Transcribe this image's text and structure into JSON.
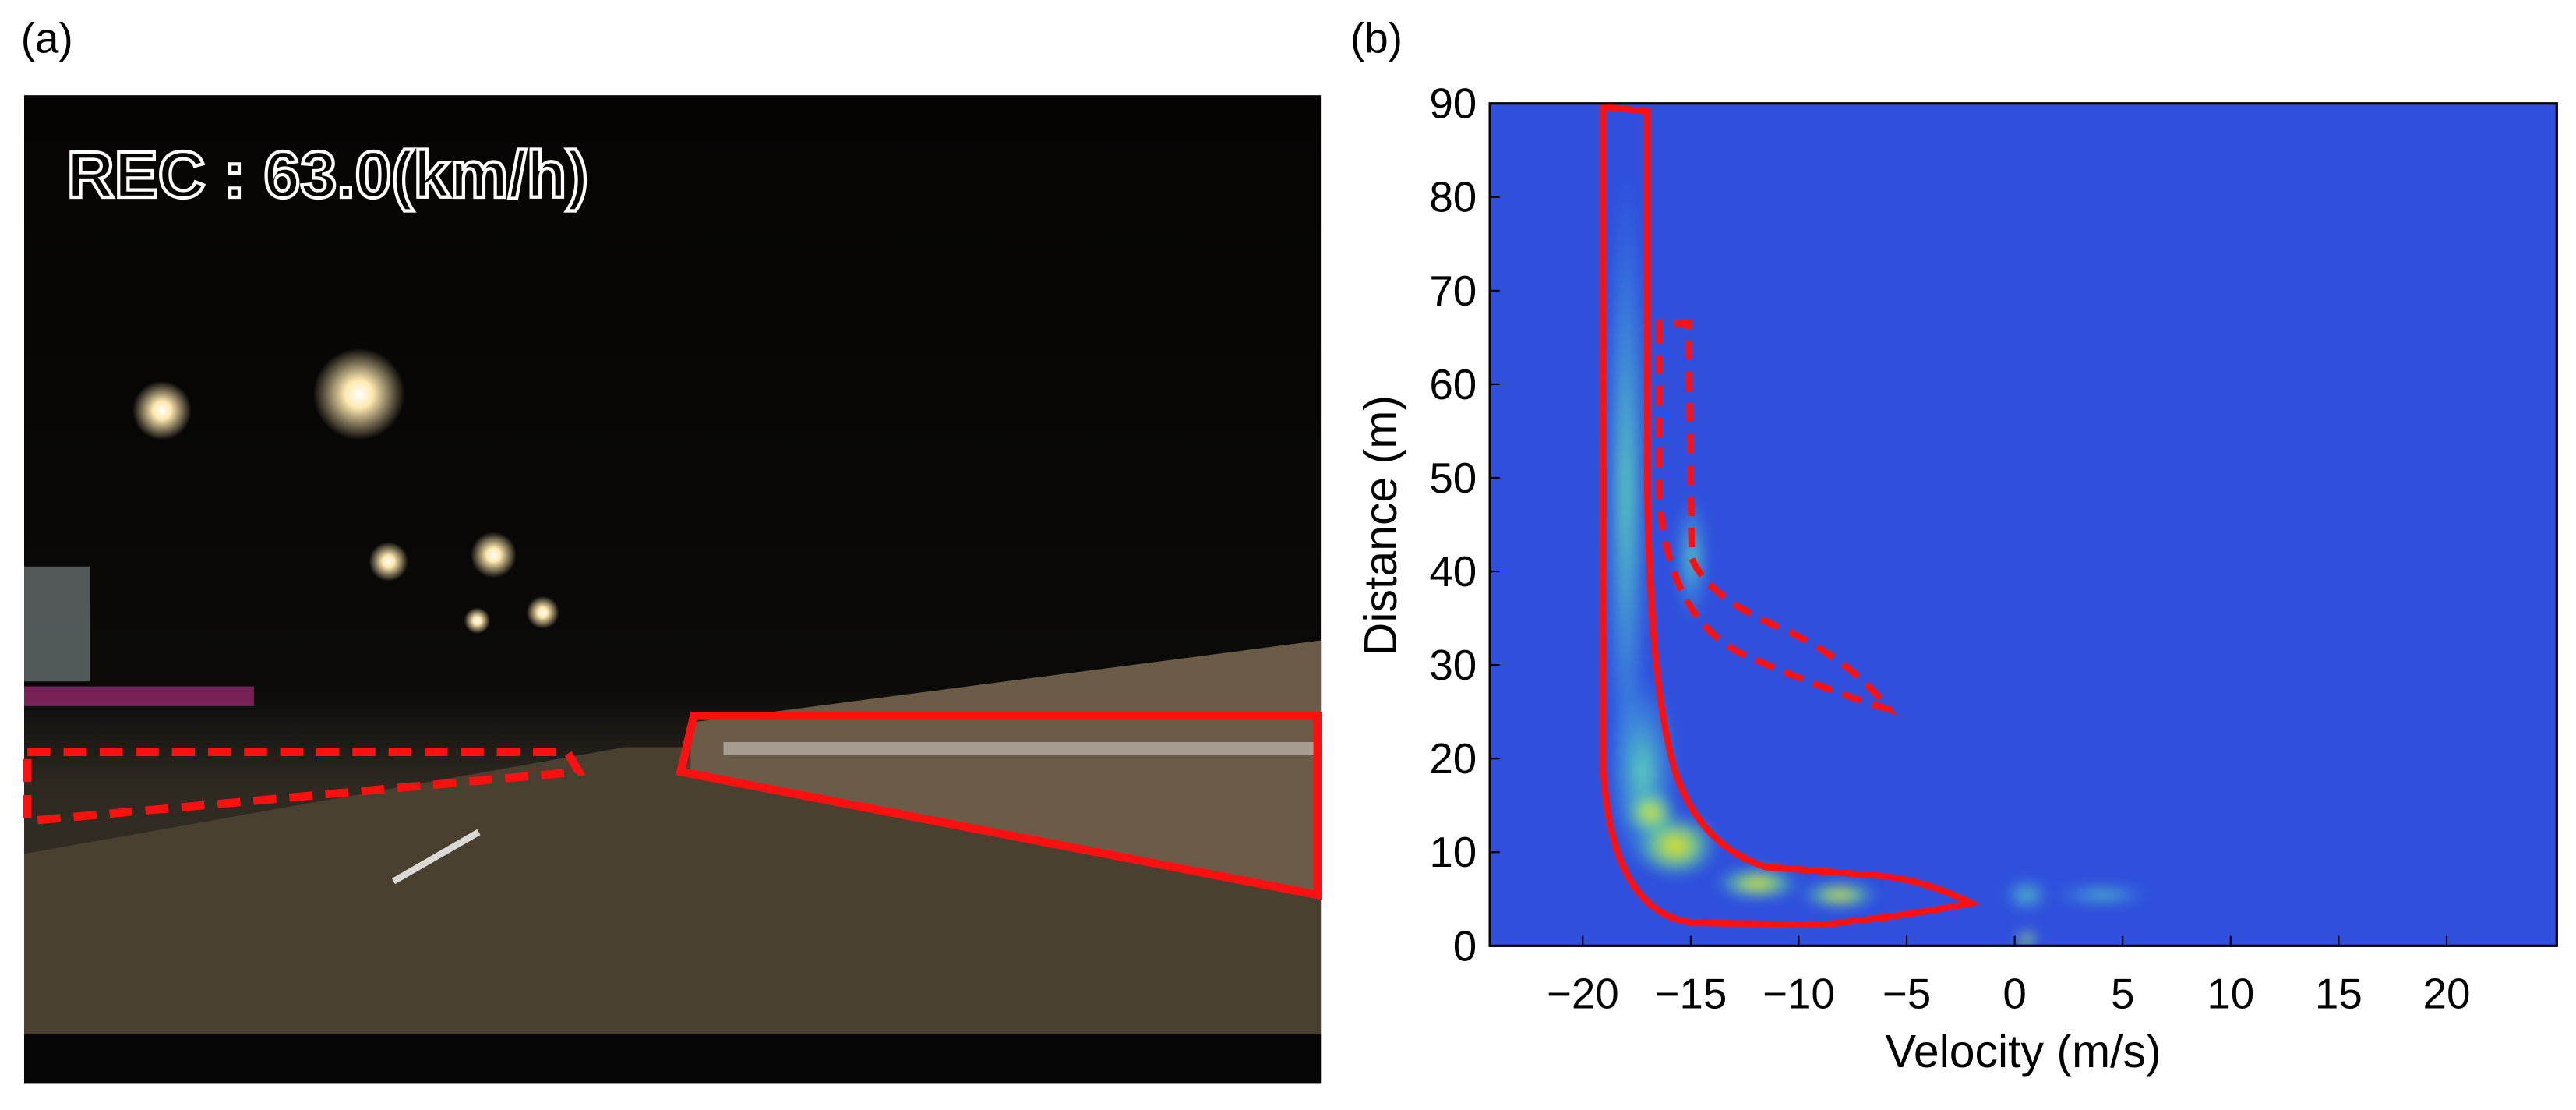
{
  "photo_panel": {
    "label": "(a)",
    "overlay_text": "REC : 63.0(km/h)"
  },
  "chart_data": {
    "type": "heatmap",
    "panel_label": "(b)",
    "xlabel": "Velocity (m/s)",
    "ylabel": "Distance (m)",
    "xlim": [
      -24.3,
      25.1
    ],
    "ylim": [
      0,
      90
    ],
    "xticks": [
      {
        "value": -20,
        "label": "−20"
      },
      {
        "value": -15,
        "label": "−15"
      },
      {
        "value": -10,
        "label": "−10"
      },
      {
        "value": -5,
        "label": "−5"
      },
      0,
      5,
      10,
      15,
      20
    ],
    "yticks": [
      0,
      10,
      20,
      30,
      40,
      50,
      60,
      70,
      80,
      90
    ],
    "color": "#2f4fdc"
  }
}
